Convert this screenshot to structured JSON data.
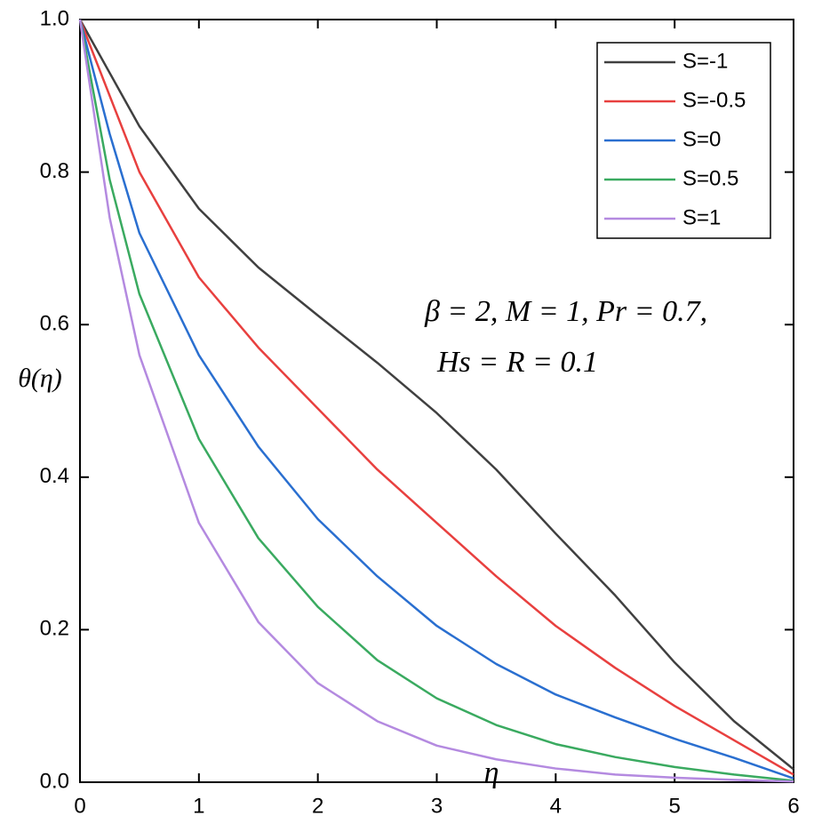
{
  "chart_data": {
    "type": "line",
    "x_label": "η",
    "y_label": "θ(η)",
    "annotations": [
      "β = 2, M = 1, Pr = 0.7,",
      "Hs = R = 0.1"
    ],
    "x": [
      0,
      0.25,
      0.5,
      1,
      1.5,
      2,
      2.5,
      3,
      3.5,
      4,
      4.5,
      5,
      5.5,
      6
    ],
    "series": [
      {
        "name": "S=-1",
        "color": "#404040",
        "values": [
          1,
          0.93,
          0.86,
          0.752,
          0.675,
          0.612,
          0.55,
          0.484,
          0.41,
          0.326,
          0.245,
          0.157,
          0.08,
          0.017
        ]
      },
      {
        "name": "S=-0.5",
        "color": "#e8403f",
        "values": [
          1,
          0.9,
          0.8,
          0.662,
          0.57,
          0.49,
          0.41,
          0.34,
          0.27,
          0.205,
          0.15,
          0.1,
          0.055,
          0.01
        ]
      },
      {
        "name": "S=0",
        "color": "#2a6fd0",
        "values": [
          1,
          0.85,
          0.72,
          0.56,
          0.44,
          0.345,
          0.27,
          0.205,
          0.155,
          0.115,
          0.085,
          0.057,
          0.032,
          0.005
        ]
      },
      {
        "name": "S=0.5",
        "color": "#3aaa60",
        "values": [
          1,
          0.79,
          0.64,
          0.45,
          0.32,
          0.23,
          0.16,
          0.11,
          0.075,
          0.05,
          0.033,
          0.02,
          0.01,
          0.002
        ]
      },
      {
        "name": "S=1",
        "color": "#b48ae0",
        "values": [
          1,
          0.74,
          0.56,
          0.34,
          0.21,
          0.13,
          0.08,
          0.048,
          0.03,
          0.018,
          0.01,
          0.006,
          0.003,
          0.001
        ]
      }
    ],
    "xlim": [
      0,
      6
    ],
    "xticks": [
      0,
      1,
      2,
      3,
      4,
      5,
      6
    ],
    "ylim": [
      0,
      1
    ],
    "yticks": [
      {
        "value": 0,
        "label": "0.0"
      },
      0.2,
      0.4,
      0.6,
      0.8,
      {
        "value": 1,
        "label": "1.0"
      }
    ],
    "legend": "upper right",
    "grid": false
  }
}
